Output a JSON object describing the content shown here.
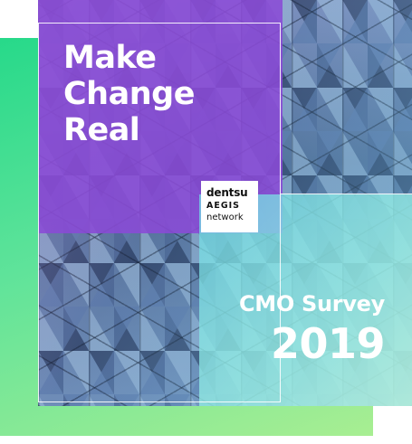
{
  "cover": {
    "headline_lines": [
      "Make",
      "Change",
      "Real"
    ],
    "logo": {
      "line1": "dentsu",
      "line2": "AEGIS",
      "line3": "network"
    },
    "survey_title": "CMO Survey",
    "survey_year": "2019"
  },
  "colors": {
    "purple_panel": "#8a4ad6",
    "teal_panel": "#8fe6e0",
    "green_back": "#27d98a",
    "text": "#ffffff"
  }
}
